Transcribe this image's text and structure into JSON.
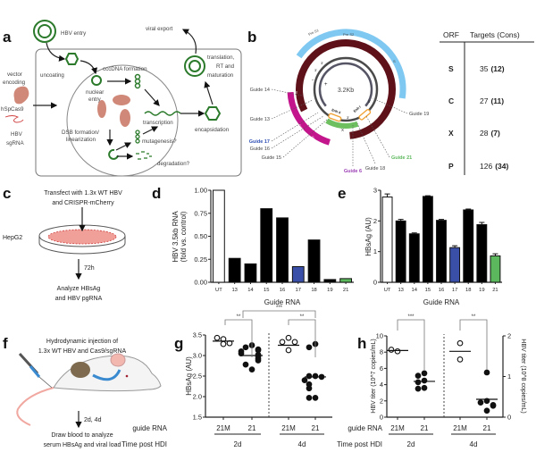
{
  "panel_labels": [
    "a",
    "b",
    "c",
    "d",
    "e",
    "f",
    "g",
    "h"
  ],
  "panel_a": {
    "hbv_entry": "HBV entry",
    "viral_export": "viral export",
    "uncoating": "uncoating",
    "cccdna_formation": "cccDNA formation",
    "nuclear_entry": [
      "nuclear",
      "entry"
    ],
    "vector": [
      "vector",
      "encoding",
      "hSpCas9"
    ],
    "sgrna": [
      "HBV",
      "sgRNA"
    ],
    "transcription": "transcription",
    "dsb": [
      "DSB formation/",
      "linearization"
    ],
    "mutagenesis": "mutagenesis?",
    "degradation": "degradation?",
    "encapsidation": "encapsidation",
    "translation": [
      "translation,",
      "RT and",
      "maturation"
    ]
  },
  "panel_b": {
    "genome_size": "3.2Kb",
    "orf_labels": {
      "pre_s1": "Pre S1",
      "pre_s2": "Pre S2",
      "s": "S",
      "pol": "Pol",
      "core": "Core",
      "pre_c": "Pre C",
      "x": "X",
      "enh1": "Enh I",
      "enh2": "Enh II"
    },
    "strand_labels": {
      "minus": "-",
      "plus": "+",
      "three_a": "3'",
      "three_b": "3'",
      "five_a": "5'",
      "three_c": "3'"
    },
    "guides": [
      {
        "label": "Guide 14",
        "color": "#444444"
      },
      {
        "label": "Guide 13",
        "color": "#444444"
      },
      {
        "label": "Guide 17",
        "color": "#2f4fb5"
      },
      {
        "label": "Guide 16",
        "color": "#444444"
      },
      {
        "label": "Guide 15",
        "color": "#444444"
      },
      {
        "label": "Guide 6",
        "color": "#9b3fb5"
      },
      {
        "label": "Guide 18",
        "color": "#444444"
      },
      {
        "label": "Guide 21",
        "color": "#5cb85c"
      },
      {
        "label": "Guide 19",
        "color": "#444444"
      }
    ],
    "colors": {
      "surface": "#7ec8f2",
      "pol": "#5e1119",
      "core": "#c4168c",
      "x": "#6dbf5f",
      "enhancer": "#f0a030"
    },
    "table": {
      "headers": [
        "ORF",
        "Targets (Cons)"
      ],
      "rows": [
        {
          "orf": "S",
          "targets": "35",
          "cons": "(12)"
        },
        {
          "orf": "C",
          "targets": "27",
          "cons": "(11)"
        },
        {
          "orf": "X",
          "targets": "28",
          "cons": "(7)"
        },
        {
          "orf": "P",
          "targets": "126",
          "cons": "(34)"
        }
      ]
    }
  },
  "panel_c": {
    "title": [
      "Transfect with 1.3x WT HBV",
      "and CRISPR-mCherry"
    ],
    "cell_line": "HepG2",
    "time": "72h",
    "readout": [
      "Analyze HBsAg",
      "and HBV pgRNA"
    ]
  },
  "panel_f": {
    "title": [
      "Hydrodynamic injection of",
      "1.3x WT HBV and Cas9/sgRNA"
    ],
    "time": "2d, 4d",
    "readout": [
      "Draw blood to analyze",
      "serum HBsAg and viral load"
    ]
  },
  "chart_data": [
    {
      "panel": "d",
      "type": "bar",
      "categories": [
        "UT",
        "13",
        "14",
        "15",
        "16",
        "17",
        "18",
        "19",
        "21"
      ],
      "values": [
        1.0,
        0.26,
        0.2,
        0.8,
        0.7,
        0.17,
        0.46,
        0.03,
        0.04
      ],
      "colors": [
        "#ffffff",
        "#000000",
        "#000000",
        "#000000",
        "#000000",
        "#3a4fa8",
        "#000000",
        "#000000",
        "#5cb85c"
      ],
      "ylabel": [
        "HBV 3.5kb RNA",
        "(fold vs. control)"
      ],
      "xlabel": "Guide RNA",
      "ylim": [
        0,
        1
      ],
      "yticks": [
        "0.00",
        "0.25",
        "0.50",
        "0.75",
        "1.00"
      ]
    },
    {
      "panel": "e",
      "type": "bar",
      "categories": [
        "UT",
        "13",
        "14",
        "15",
        "16",
        "17",
        "18",
        "19",
        "21"
      ],
      "values": [
        2.78,
        2.0,
        1.58,
        2.8,
        2.02,
        1.13,
        2.36,
        1.88,
        0.86
      ],
      "errors": [
        0.1,
        0.05,
        0.03,
        0.02,
        0.03,
        0.06,
        0.03,
        0.07,
        0.07
      ],
      "colors": [
        "#ffffff",
        "#000000",
        "#000000",
        "#000000",
        "#000000",
        "#3a4fa8",
        "#000000",
        "#000000",
        "#5cb85c"
      ],
      "ylabel": "HBsAg (AU)",
      "xlabel": "Guide RNA",
      "ylim": [
        0,
        3
      ],
      "yticks": [
        "0",
        "1",
        "2",
        "3"
      ]
    },
    {
      "panel": "g",
      "type": "scatter",
      "ylabel": "HBsAg (AU)",
      "ylim": [
        1.5,
        3.5
      ],
      "yticks": [
        "1.5",
        "2.0",
        "2.5",
        "3.0",
        "3.5"
      ],
      "row_labels": [
        "guide RNA",
        "Time post HDI"
      ],
      "groups": [
        {
          "guide": "21M",
          "time": "2d",
          "filled": false,
          "mean": 3.35,
          "points": [
            3.4,
            3.43,
            3.28,
            3.3
          ]
        },
        {
          "guide": "21",
          "time": "2d",
          "filled": true,
          "mean": 3.0,
          "points": [
            3.25,
            3.2,
            3.15,
            3.13,
            3.1,
            3.05,
            3.02,
            2.98,
            2.92,
            2.88,
            2.78,
            2.66
          ]
        },
        {
          "guide": "21M",
          "time": "4d",
          "filled": false,
          "mean": 3.25,
          "points": [
            3.43,
            3.33,
            3.33,
            3.13
          ]
        },
        {
          "guide": "21",
          "time": "4d",
          "filled": true,
          "mean": 2.48,
          "points": [
            3.28,
            3.2,
            2.5,
            2.5,
            2.48,
            2.4,
            2.3,
            2.2,
            1.97,
            1.97
          ]
        }
      ],
      "significance": [
        {
          "label": "**",
          "between": [
            "21M 2d",
            "21 2d"
          ]
        },
        {
          "label": "**",
          "between": [
            "21M 4d",
            "21 4d"
          ]
        },
        {
          "label": "***",
          "between": [
            "21 2d",
            "21 4d"
          ]
        }
      ]
    },
    {
      "panel": "h",
      "type": "scatter",
      "ylabel_left": "HBV titer (10^7 copies/mL)",
      "ylabel_right": "HBV titer (10^8 copies/mL)",
      "ylim_left": [
        0,
        10
      ],
      "ylim_right": [
        0,
        2
      ],
      "yticks_left": [
        "0",
        "2",
        "4",
        "6",
        "8",
        "10"
      ],
      "yticks_right": [
        "0",
        "1",
        "2"
      ],
      "row_labels": [
        "guide RNA",
        "Time post HDI"
      ],
      "groups": [
        {
          "guide": "21M",
          "time": "2d",
          "filled": false,
          "mean": 8.2,
          "points": [
            8.1,
            8.3
          ]
        },
        {
          "guide": "21",
          "time": "2d",
          "filled": true,
          "mean": 4.4,
          "points": [
            5.4,
            5.1,
            4.5,
            4.3,
            3.6,
            3.5
          ]
        },
        {
          "guide": "21M",
          "time": "4d",
          "filled": false,
          "mean": 8.1,
          "points": [
            9.1,
            7.1
          ]
        },
        {
          "guide": "21",
          "time": "4d",
          "filled": true,
          "mean": 2.2,
          "points": [
            5.5,
            2.0,
            1.8,
            1.5,
            1.4,
            0.8
          ]
        }
      ],
      "significance": [
        {
          "label": "***",
          "between": [
            "21M 2d",
            "21 2d"
          ]
        },
        {
          "label": "**",
          "between": [
            "21M 4d",
            "21 4d"
          ]
        }
      ]
    }
  ]
}
